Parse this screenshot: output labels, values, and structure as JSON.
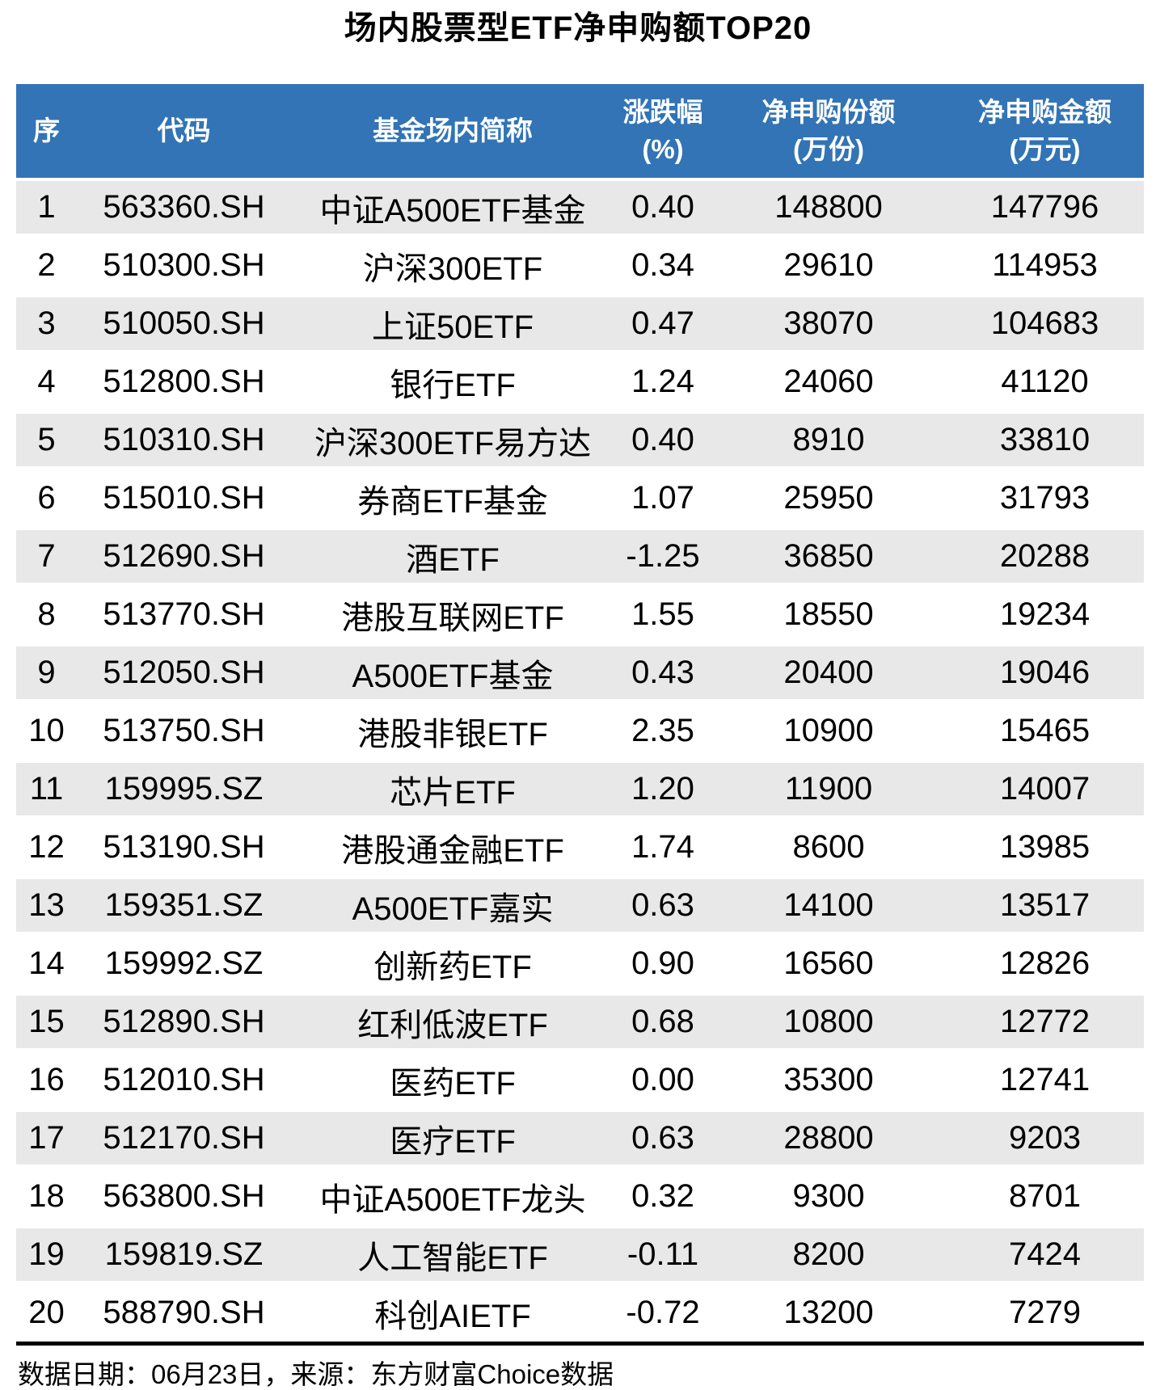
{
  "colors": {
    "header_bg": "#3274b5",
    "header_text": "#ffffff",
    "row_alt_bg": "#e8e8e8",
    "body_text": "#000000",
    "footer_rule": "#000000"
  },
  "chart_data": {
    "type": "table",
    "title": "场内股票型ETF净申购额TOP20",
    "columns": [
      {
        "key": "rank",
        "label": "序"
      },
      {
        "key": "code",
        "label": "代码"
      },
      {
        "key": "name",
        "label": "基金场内简称"
      },
      {
        "key": "change",
        "label": "涨跌幅",
        "unit": "(%)"
      },
      {
        "key": "shares",
        "label": "净申购份额",
        "unit": "(万份)"
      },
      {
        "key": "amount",
        "label": "净申购金额",
        "unit": "(万元)"
      }
    ],
    "rows": [
      {
        "rank": "1",
        "code": "563360.SH",
        "name": "中证A500ETF基金",
        "change": "0.40",
        "shares": "148800",
        "amount": "147796"
      },
      {
        "rank": "2",
        "code": "510300.SH",
        "name": "沪深300ETF",
        "change": "0.34",
        "shares": "29610",
        "amount": "114953"
      },
      {
        "rank": "3",
        "code": "510050.SH",
        "name": "上证50ETF",
        "change": "0.47",
        "shares": "38070",
        "amount": "104683"
      },
      {
        "rank": "4",
        "code": "512800.SH",
        "name": "银行ETF",
        "change": "1.24",
        "shares": "24060",
        "amount": "41120"
      },
      {
        "rank": "5",
        "code": "510310.SH",
        "name": "沪深300ETF易方达",
        "change": "0.40",
        "shares": "8910",
        "amount": "33810"
      },
      {
        "rank": "6",
        "code": "515010.SH",
        "name": "券商ETF基金",
        "change": "1.07",
        "shares": "25950",
        "amount": "31793"
      },
      {
        "rank": "7",
        "code": "512690.SH",
        "name": "酒ETF",
        "change": "-1.25",
        "shares": "36850",
        "amount": "20288"
      },
      {
        "rank": "8",
        "code": "513770.SH",
        "name": "港股互联网ETF",
        "change": "1.55",
        "shares": "18550",
        "amount": "19234"
      },
      {
        "rank": "9",
        "code": "512050.SH",
        "name": "A500ETF基金",
        "change": "0.43",
        "shares": "20400",
        "amount": "19046"
      },
      {
        "rank": "10",
        "code": "513750.SH",
        "name": "港股非银ETF",
        "change": "2.35",
        "shares": "10900",
        "amount": "15465"
      },
      {
        "rank": "11",
        "code": "159995.SZ",
        "name": "芯片ETF",
        "change": "1.20",
        "shares": "11900",
        "amount": "14007"
      },
      {
        "rank": "12",
        "code": "513190.SH",
        "name": "港股通金融ETF",
        "change": "1.74",
        "shares": "8600",
        "amount": "13985"
      },
      {
        "rank": "13",
        "code": "159351.SZ",
        "name": "A500ETF嘉实",
        "change": "0.63",
        "shares": "14100",
        "amount": "13517"
      },
      {
        "rank": "14",
        "code": "159992.SZ",
        "name": "创新药ETF",
        "change": "0.90",
        "shares": "16560",
        "amount": "12826"
      },
      {
        "rank": "15",
        "code": "512890.SH",
        "name": "红利低波ETF",
        "change": "0.68",
        "shares": "10800",
        "amount": "12772"
      },
      {
        "rank": "16",
        "code": "512010.SH",
        "name": "医药ETF",
        "change": "0.00",
        "shares": "35300",
        "amount": "12741"
      },
      {
        "rank": "17",
        "code": "512170.SH",
        "name": "医疗ETF",
        "change": "0.63",
        "shares": "28800",
        "amount": "9203"
      },
      {
        "rank": "18",
        "code": "563800.SH",
        "name": "中证A500ETF龙头",
        "change": "0.32",
        "shares": "9300",
        "amount": "8701"
      },
      {
        "rank": "19",
        "code": "159819.SZ",
        "name": "人工智能ETF",
        "change": "-0.11",
        "shares": "8200",
        "amount": "7424"
      },
      {
        "rank": "20",
        "code": "588790.SH",
        "name": "科创AIETF",
        "change": "-0.72",
        "shares": "13200",
        "amount": "7279"
      }
    ],
    "footnote": "数据日期：06月23日，来源：东方财富Choice数据"
  }
}
